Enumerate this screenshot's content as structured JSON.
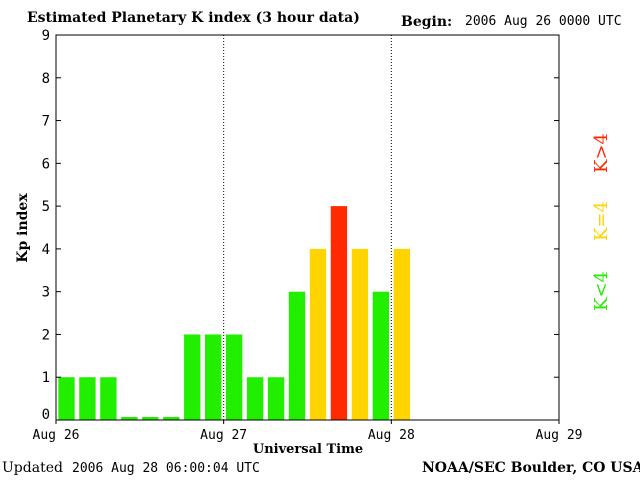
{
  "header": {
    "title": "Estimated Planetary K index (3 hour data)",
    "begin_label": "Begin:",
    "begin_value": "2006 Aug 26 0000 UTC"
  },
  "footer": {
    "updated_label": "Updated",
    "updated_value": "2006 Aug 28 06:00:04 UTC",
    "credit": "NOAA/SEC Boulder, CO USA"
  },
  "legend": {
    "low": "K<4",
    "equal": "K=4",
    "high": "K>4"
  },
  "colors": {
    "low": "#22ee00",
    "equal": "#ffd400",
    "high": "#ff2a00"
  },
  "chart_data": {
    "type": "bar",
    "title": "Estimated Planetary K index (3 hour data)",
    "xlabel": "Universal Time",
    "ylabel": "Kp index",
    "ylim": [
      0,
      9
    ],
    "yticks": [
      "0",
      "1",
      "2",
      "3",
      "4",
      "5",
      "6",
      "7",
      "8",
      "9"
    ],
    "xticks": [
      "Aug 26",
      "Aug 27",
      "Aug 28",
      "Aug 29"
    ],
    "slots_total": 24,
    "categories": [
      "Aug 26 00",
      "Aug 26 03",
      "Aug 26 06",
      "Aug 26 09",
      "Aug 26 12",
      "Aug 26 15",
      "Aug 26 18",
      "Aug 26 21",
      "Aug 27 00",
      "Aug 27 03",
      "Aug 27 06",
      "Aug 27 09",
      "Aug 27 12",
      "Aug 27 15",
      "Aug 27 18",
      "Aug 27 21",
      "Aug 28 00"
    ],
    "values": [
      1,
      1,
      1,
      0,
      0,
      0,
      2,
      2,
      2,
      1,
      1,
      3,
      4,
      5,
      4,
      3,
      4
    ],
    "grid": false,
    "day_separators": true
  }
}
